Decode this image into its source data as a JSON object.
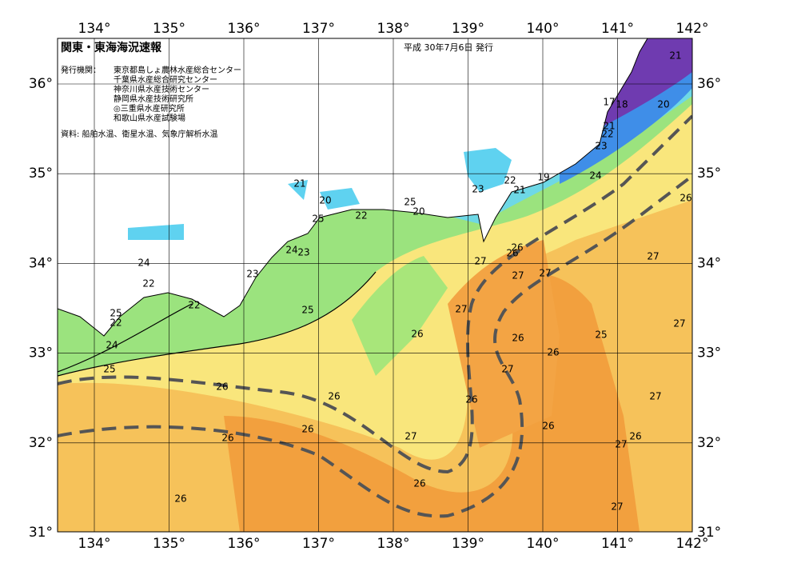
{
  "header": {
    "title": "関東・東海海況速報",
    "date": "平成 30年7月6日 発行",
    "issuer_label": "発行機関：",
    "issuers": [
      "東京都島しょ農林水産総合センター",
      "千葉県水産総合研究センター",
      "神奈川県水産技術センター",
      "静岡県水産技術研究所",
      "◎三重県水産研究所",
      "和歌山県水産試験場"
    ],
    "source": "資料: 船舶水温、衛星水温、気象庁解析水温"
  },
  "map": {
    "lon_labels": [
      "134°",
      "135°",
      "136°",
      "137°",
      "138°",
      "139°",
      "140°",
      "141°",
      "142°"
    ],
    "lat_labels": [
      "36°",
      "35°",
      "34°",
      "33°",
      "32°",
      "31°"
    ],
    "contour_labels": [
      21,
      20,
      18,
      17,
      21,
      22,
      23,
      24,
      26,
      19,
      22,
      21,
      23,
      21,
      20,
      25,
      22,
      25,
      20,
      24,
      23,
      24,
      22,
      23,
      22,
      25,
      25,
      22,
      24,
      25,
      26,
      26,
      26,
      27,
      27,
      26,
      26,
      27,
      27,
      27,
      26,
      26,
      25,
      26,
      27,
      26,
      27,
      27,
      27,
      27,
      26,
      26,
      26,
      26,
      26,
      27
    ]
  }
}
